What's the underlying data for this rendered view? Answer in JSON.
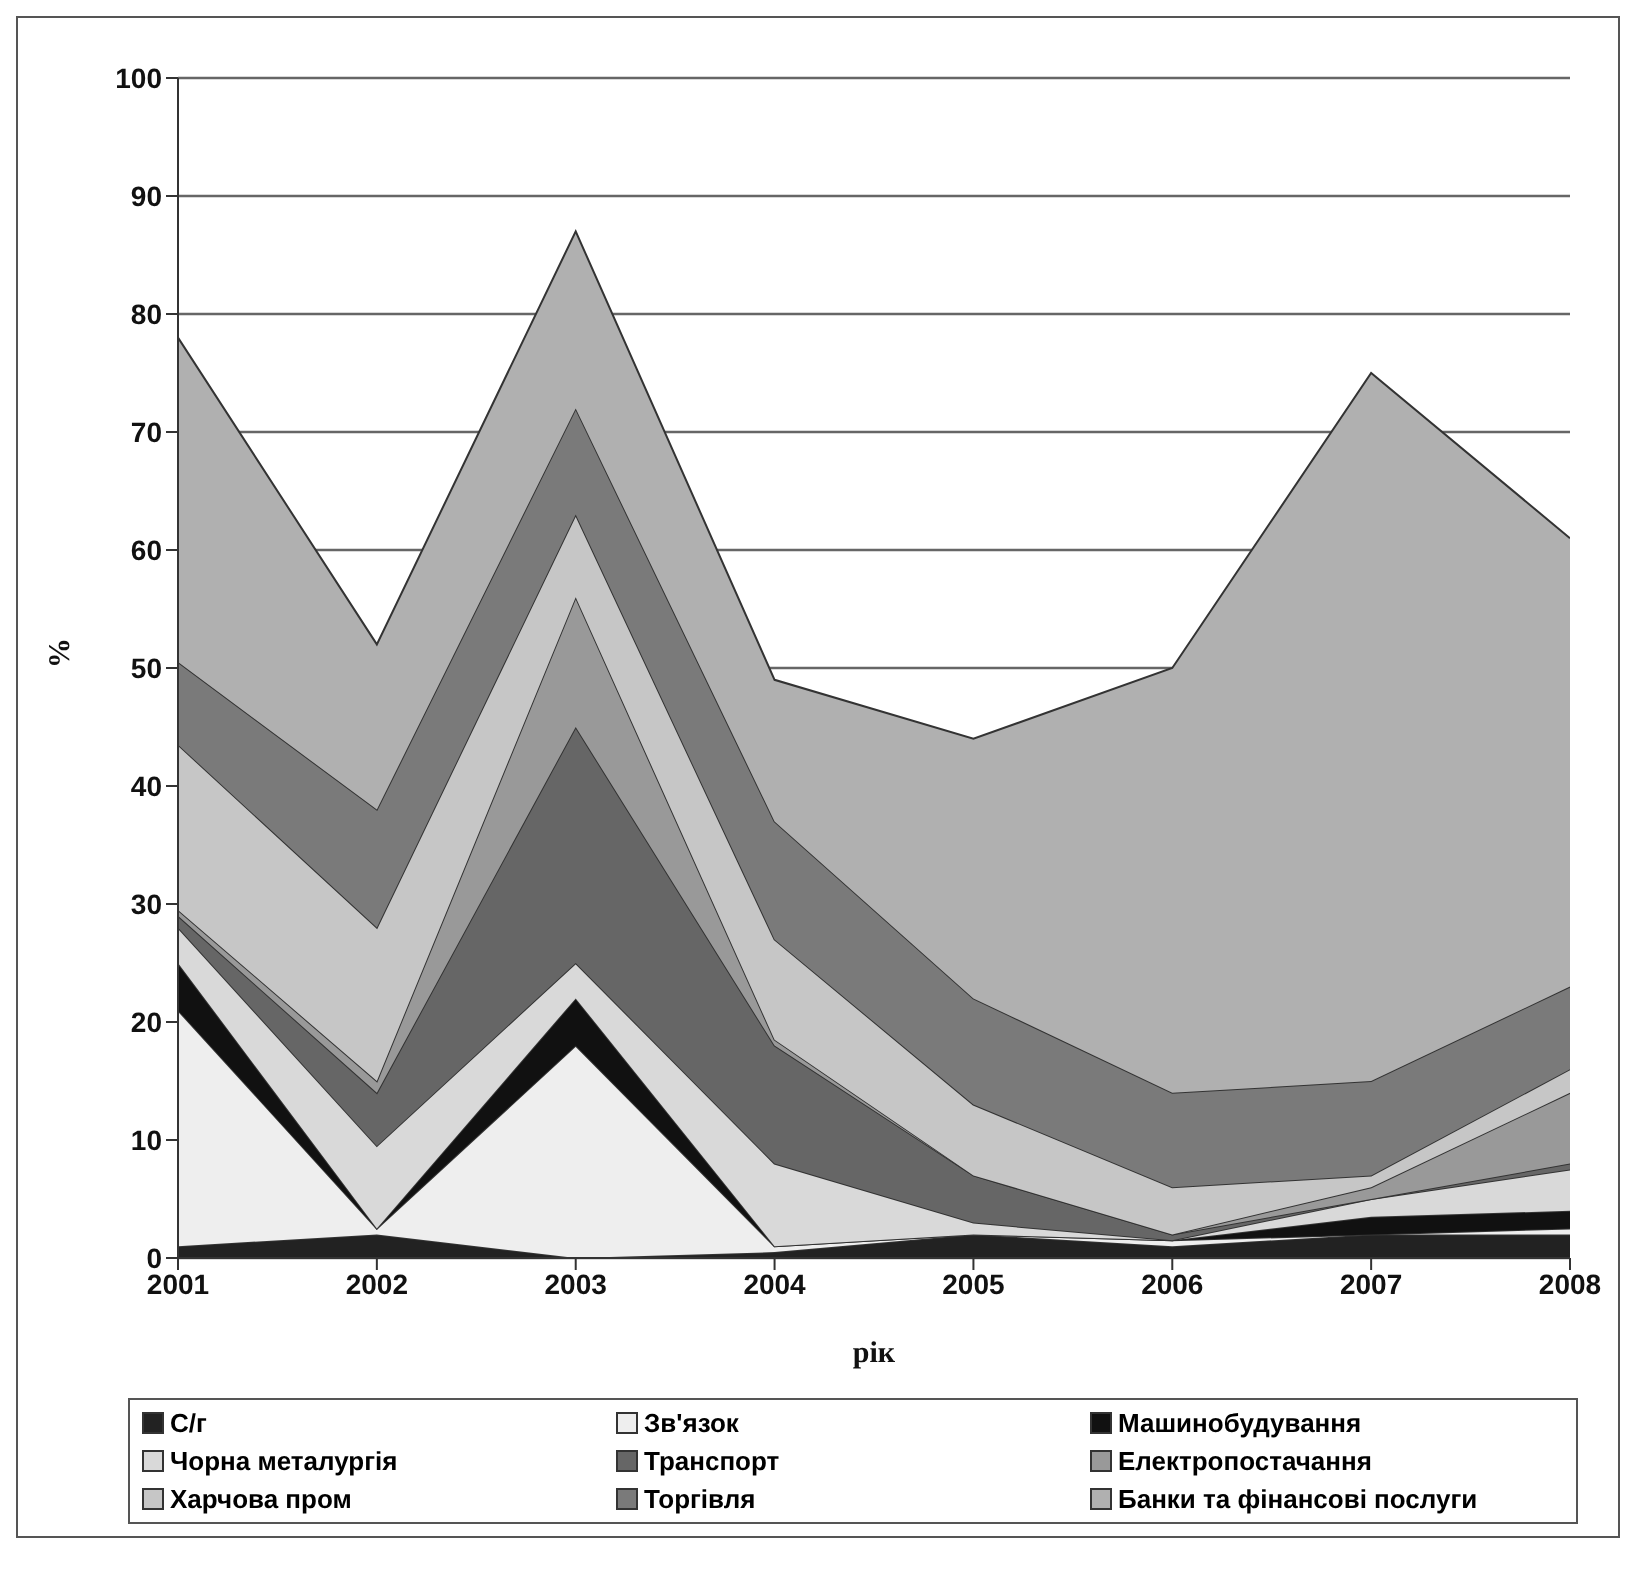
{
  "chart_data": {
    "type": "area",
    "stacked": true,
    "xlabel": "рік",
    "ylabel": "%",
    "x": [
      2001,
      2002,
      2003,
      2004,
      2005,
      2006,
      2007,
      2008
    ],
    "xlim": [
      2001,
      2008
    ],
    "xticks": [
      2001,
      2002,
      2003,
      2004,
      2005,
      2006,
      2007,
      2008
    ],
    "ylim": [
      0,
      100
    ],
    "yticks": [
      0,
      10,
      20,
      30,
      40,
      50,
      60,
      70,
      80,
      90,
      100
    ],
    "grid": "y",
    "legend": "bottom",
    "series": [
      {
        "name": "С/г",
        "color": "#222222",
        "values": [
          1,
          2,
          0,
          0.5,
          2,
          1,
          2,
          2
        ]
      },
      {
        "name": "Зв'язок",
        "color": "#eeeeee",
        "values": [
          20,
          0.5,
          18,
          0.5,
          0,
          0.5,
          0,
          0.5
        ]
      },
      {
        "name": "Машинобудування",
        "color": "#111111",
        "values": [
          4,
          0,
          4,
          0,
          0,
          0,
          1.5,
          1.5
        ]
      },
      {
        "name": "Чорна металургія",
        "color": "#d9d9d9",
        "values": [
          3,
          7,
          3,
          7,
          1,
          0,
          1.5,
          3.5
        ]
      },
      {
        "name": "Транспорт",
        "color": "#666666",
        "values": [
          1,
          4.5,
          20,
          10,
          4,
          0.5,
          0,
          0.5
        ]
      },
      {
        "name": "Електропостачання",
        "color": "#999999",
        "values": [
          0.5,
          1,
          11,
          0.5,
          0,
          0,
          1,
          6
        ]
      },
      {
        "name": "Харчова пром",
        "color": "#c6c6c6",
        "values": [
          14,
          13,
          7,
          8.5,
          6,
          4,
          1,
          2
        ]
      },
      {
        "name": "Торгівля",
        "color": "#7a7a7a",
        "values": [
          7,
          10,
          9,
          10,
          9,
          8,
          8,
          7
        ]
      },
      {
        "name": "Банки та фінансові послуги",
        "color": "#b0b0b0",
        "values": [
          27.5,
          14,
          15,
          12,
          22,
          36,
          60,
          38
        ]
      }
    ]
  }
}
